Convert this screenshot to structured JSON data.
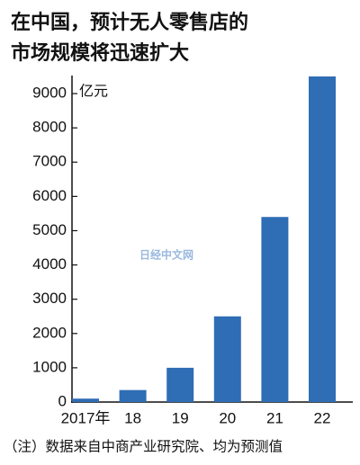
{
  "chart_data": {
    "type": "bar",
    "title": [
      "在中国，预计无人零售店的",
      "市场规模将迅速扩大"
    ],
    "y_unit": "亿元",
    "categories": [
      "2017年",
      "18",
      "19",
      "20",
      "21",
      "22"
    ],
    "values": [
      100,
      350,
      1000,
      2500,
      5400,
      9500
    ],
    "color": "#2f6db5",
    "ylim": [
      0,
      9500
    ],
    "yticks": [
      0,
      1000,
      2000,
      3000,
      4000,
      5000,
      6000,
      7000,
      8000,
      9000
    ],
    "grid": false,
    "watermark": "日经中文网",
    "note": "（注）数据来自中商产业研究院、均为预测值"
  }
}
